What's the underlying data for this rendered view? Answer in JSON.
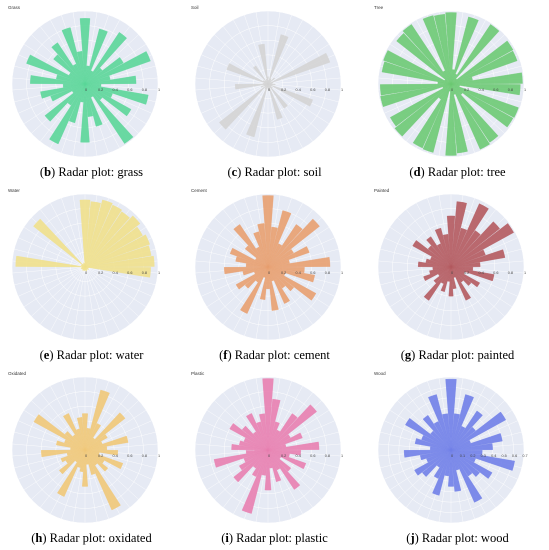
{
  "chart_data": [
    {
      "type": "radar",
      "label": "b",
      "caption_label": "Radar plot: grass",
      "title": "Grass",
      "color": "#5bd699",
      "radial_ticks": [
        "0",
        "0.2",
        "0.4",
        "0.6",
        "0.8",
        "1"
      ],
      "rlim": [
        0,
        1
      ],
      "values": [
        0.9,
        0.25,
        0.78,
        0.2,
        0.85,
        0.3,
        0.6,
        0.95,
        0.35,
        0.7,
        0.22,
        0.88,
        0.4,
        0.72,
        0.3,
        0.98,
        0.2,
        0.6,
        0.45,
        0.8,
        0.25,
        0.55,
        0.9,
        0.35,
        0.7,
        0.2,
        0.5,
        0.62,
        0.3,
        0.75,
        0.4,
        0.85,
        0.25,
        0.55,
        0.68,
        0.3,
        0.8,
        0.45
      ]
    },
    {
      "type": "radar",
      "label": "c",
      "caption_label": "Radar plot: soil",
      "title": "Soil",
      "color": "#d4d4d4",
      "radial_ticks": [
        "0",
        "0.2",
        "0.4",
        "0.6",
        "0.8",
        "1"
      ],
      "rlim": [
        0,
        1
      ],
      "values": [
        0.1,
        0.05,
        0.7,
        0.08,
        0.06,
        0.12,
        0.04,
        0.9,
        0.07,
        0.05,
        0.1,
        0.06,
        0.65,
        0.05,
        0.08,
        0.4,
        0.06,
        0.5,
        0.09,
        0.07,
        0.05,
        0.75,
        0.08,
        0.06,
        0.85,
        0.05,
        0.1,
        0.06,
        0.45,
        0.07,
        0.05,
        0.6,
        0.08,
        0.06,
        0.3,
        0.05,
        0.07,
        0.55
      ]
    },
    {
      "type": "radar",
      "label": "d",
      "caption_label": "Radar plot: tree",
      "title": "Tree",
      "color": "#6dca74",
      "radial_ticks": [
        "0",
        "0.2",
        "0.4",
        "0.6",
        "0.8",
        "1"
      ],
      "rlim": [
        0,
        1
      ],
      "values": [
        0.98,
        0.2,
        0.95,
        0.15,
        0.98,
        0.1,
        0.97,
        0.96,
        0.3,
        0.98,
        0.95,
        0.12,
        0.98,
        0.97,
        0.2,
        0.96,
        0.98,
        0.15,
        0.95,
        0.98,
        0.1,
        0.97,
        0.96,
        0.25,
        0.98,
        0.95,
        0.12,
        0.98,
        0.97,
        0.18,
        0.96,
        0.98,
        0.1,
        0.95,
        0.98,
        0.2,
        0.97,
        0.96
      ]
    },
    {
      "type": "radar",
      "label": "e",
      "caption_label": "Radar plot: water",
      "title": "Water",
      "color": "#f0e08c",
      "radial_ticks": [
        "0",
        "0.2",
        "0.4",
        "0.6",
        "0.8",
        "1"
      ],
      "rlim": [
        0,
        1
      ],
      "values": [
        0.92,
        0.9,
        0.95,
        0.93,
        0.91,
        0.96,
        0.9,
        0.94,
        0.92,
        0.95,
        0.9,
        0.05,
        0.04,
        0.06,
        0.05,
        0.04,
        0.05,
        0.06,
        0.04,
        0.05,
        0.05,
        0.04,
        0.06,
        0.05,
        0.04,
        0.05,
        0.06,
        0.04,
        0.05,
        0.95,
        0.04,
        0.06,
        0.05,
        0.9,
        0.05,
        0.04,
        0.06,
        0.05
      ]
    },
    {
      "type": "radar",
      "label": "f",
      "caption_label": "Radar plot: cement",
      "title": "Cement",
      "color": "#e8a070",
      "radial_ticks": [
        "0",
        "0.2",
        "0.4",
        "0.6",
        "0.8",
        "1"
      ],
      "rlim": [
        0,
        1
      ],
      "values": [
        0.98,
        0.55,
        0.8,
        0.35,
        0.7,
        0.9,
        0.4,
        0.6,
        0.3,
        0.85,
        0.5,
        0.65,
        0.25,
        0.75,
        0.45,
        0.35,
        0.55,
        0.2,
        0.6,
        0.3,
        0.45,
        0.15,
        0.7,
        0.25,
        0.4,
        0.5,
        0.2,
        0.35,
        0.6,
        0.3,
        0.45,
        0.55,
        0.2,
        0.4,
        0.7,
        0.3,
        0.5,
        0.6
      ]
    },
    {
      "type": "radar",
      "label": "g",
      "caption_label": "Radar plot: painted",
      "title": "Painted",
      "color": "#b45a5f",
      "radial_ticks": [
        "0",
        "0.2",
        "0.4",
        "0.6",
        "0.8",
        "1"
      ],
      "rlim": [
        0,
        1
      ],
      "values": [
        0.7,
        0.9,
        0.55,
        0.95,
        0.6,
        0.85,
        0.98,
        0.5,
        0.75,
        0.4,
        0.3,
        0.6,
        0.2,
        0.45,
        0.35,
        0.25,
        0.5,
        0.15,
        0.3,
        0.4,
        0.2,
        0.35,
        0.25,
        0.55,
        0.3,
        0.2,
        0.4,
        0.3,
        0.25,
        0.45,
        0.35,
        0.3,
        0.6,
        0.4,
        0.5,
        0.35,
        0.55,
        0.45
      ]
    },
    {
      "type": "radar",
      "label": "h",
      "caption_label": "Radar plot: oxidated",
      "title": "Oxidated",
      "color": "#f0c878",
      "radial_ticks": [
        "0",
        "0.2",
        "0.4",
        "0.6",
        "0.8",
        "1"
      ],
      "rlim": [
        0,
        1
      ],
      "values": [
        0.5,
        0.3,
        0.85,
        0.4,
        0.2,
        0.7,
        0.35,
        0.25,
        0.6,
        0.3,
        0.45,
        0.2,
        0.55,
        0.3,
        0.4,
        0.25,
        0.9,
        0.35,
        0.2,
        0.5,
        0.3,
        0.25,
        0.7,
        0.2,
        0.45,
        0.3,
        0.35,
        0.25,
        0.6,
        0.2,
        0.4,
        0.3,
        0.8,
        0.35,
        0.25,
        0.55,
        0.3,
        0.45
      ]
    },
    {
      "type": "radar",
      "label": "i",
      "caption_label": "Radar plot: plastic",
      "title": "Plastic",
      "color": "#e87fb0",
      "radial_ticks": [
        "0",
        "0.2",
        "0.4",
        "0.6",
        "0.8",
        "1"
      ],
      "rlim": [
        0,
        1
      ],
      "values": [
        0.98,
        0.7,
        0.4,
        0.3,
        0.6,
        0.85,
        0.35,
        0.5,
        0.25,
        0.7,
        0.45,
        0.3,
        0.55,
        0.2,
        0.4,
        0.65,
        0.3,
        0.45,
        0.25,
        0.55,
        0.35,
        0.9,
        0.4,
        0.3,
        0.6,
        0.45,
        0.35,
        0.75,
        0.3,
        0.5,
        0.4,
        0.35,
        0.6,
        0.45,
        0.3,
        0.55,
        0.4,
        0.5
      ]
    },
    {
      "type": "radar",
      "label": "j",
      "caption_label": "Radar plot: wood",
      "title": "Wood",
      "color": "#7080e8",
      "radial_ticks": [
        "0",
        "0.1",
        "0.2",
        "0.3",
        "0.4",
        "0.5",
        "0.6",
        "0.7"
      ],
      "rlim": [
        0,
        0.7
      ],
      "values": [
        0.68,
        0.35,
        0.55,
        0.25,
        0.45,
        0.3,
        0.6,
        0.2,
        0.5,
        0.4,
        0.3,
        0.62,
        0.25,
        0.45,
        0.35,
        0.3,
        0.55,
        0.2,
        0.4,
        0.35,
        0.25,
        0.45,
        0.3,
        0.2,
        0.35,
        0.4,
        0.25,
        0.3,
        0.45,
        0.2,
        0.35,
        0.3,
        0.5,
        0.25,
        0.4,
        0.3,
        0.55,
        0.35
      ]
    }
  ]
}
